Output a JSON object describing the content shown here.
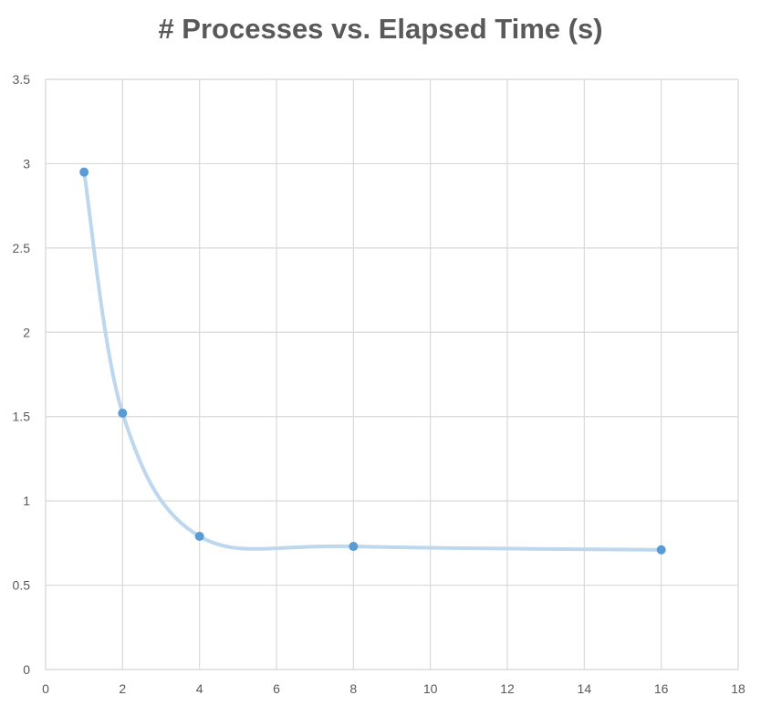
{
  "chart_data": {
    "type": "scatter",
    "title": "# Processes vs. Elapsed Time (s)",
    "xlabel": "",
    "ylabel": "",
    "xlim": [
      0,
      18
    ],
    "ylim": [
      0,
      3.5
    ],
    "x_ticks": [
      "0",
      "2",
      "4",
      "6",
      "8",
      "10",
      "12",
      "14",
      "16",
      "18"
    ],
    "y_ticks": [
      "0",
      "0.5",
      "1",
      "1.5",
      "2",
      "2.5",
      "3",
      "3.5"
    ],
    "grid": true,
    "legend": "none",
    "line_style": "smooth",
    "series": [
      {
        "x": [
          1,
          2,
          4,
          8,
          16
        ],
        "y": [
          2.95,
          1.52,
          0.79,
          0.73,
          0.71
        ],
        "marker_color": "#5b9bd5",
        "line_color": "#bdd7ee"
      }
    ]
  }
}
